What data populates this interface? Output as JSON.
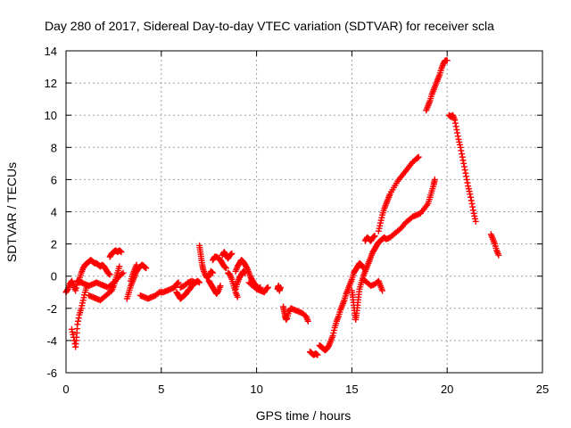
{
  "chart_data": {
    "type": "scatter",
    "title": "Day 280 of 2017, Sidereal Day-to-day VTEC variation (SDTVAR) for receiver scla",
    "xlabel": "GPS time / hours",
    "ylabel": "SDTVAR / TECUs",
    "xlim": [
      0,
      25
    ],
    "ylim": [
      -6,
      14
    ],
    "xticks": [
      0,
      5,
      10,
      15,
      20,
      25
    ],
    "yticks": [
      -6,
      -4,
      -2,
      0,
      2,
      4,
      6,
      8,
      10,
      12,
      14
    ],
    "grid": true,
    "marker": "plus",
    "color": "#ff0000",
    "segments": [
      [
        [
          0.0,
          -1.0
        ],
        [
          0.1,
          -0.8
        ],
        [
          0.2,
          -0.5
        ],
        [
          0.3,
          -0.3
        ],
        [
          0.4,
          -0.6
        ],
        [
          0.5,
          -0.9
        ],
        [
          0.6,
          -0.4
        ],
        [
          0.7,
          -0.2
        ],
        [
          0.8,
          0.2
        ],
        [
          0.9,
          0.5
        ],
        [
          1.0,
          0.7
        ],
        [
          1.1,
          0.8
        ],
        [
          1.2,
          0.9
        ],
        [
          1.3,
          1.0
        ],
        [
          1.4,
          0.9
        ],
        [
          1.5,
          0.8
        ],
        [
          1.6,
          0.8
        ],
        [
          1.7,
          0.7
        ],
        [
          1.8,
          0.6
        ],
        [
          1.9,
          0.7
        ],
        [
          2.0,
          0.6
        ],
        [
          2.1,
          0.4
        ],
        [
          2.2,
          0.2
        ],
        [
          2.3,
          0.1
        ]
      ],
      [
        [
          0.3,
          -3.3
        ],
        [
          0.4,
          -3.8
        ],
        [
          0.5,
          -4.4
        ],
        [
          0.55,
          -3.8
        ],
        [
          0.6,
          -3.0
        ],
        [
          0.7,
          -2.4
        ],
        [
          0.8,
          -2.0
        ],
        [
          0.9,
          -1.5
        ],
        [
          1.0,
          -1.0
        ],
        [
          1.1,
          -0.6
        ]
      ],
      [
        [
          0.6,
          -0.3
        ],
        [
          0.8,
          -0.4
        ],
        [
          1.0,
          -0.5
        ],
        [
          1.2,
          -0.6
        ],
        [
          1.4,
          -0.5
        ],
        [
          1.6,
          -0.4
        ],
        [
          1.8,
          -0.5
        ],
        [
          2.0,
          -0.6
        ],
        [
          2.2,
          -0.7
        ],
        [
          2.4,
          -0.5
        ],
        [
          2.6,
          -0.3
        ],
        [
          2.8,
          0.0
        ],
        [
          3.0,
          0.2
        ]
      ],
      [
        [
          1.2,
          -1.2
        ],
        [
          1.4,
          -1.3
        ],
        [
          1.6,
          -1.4
        ],
        [
          1.8,
          -1.5
        ],
        [
          2.0,
          -1.3
        ],
        [
          2.2,
          -1.1
        ],
        [
          2.4,
          -0.9
        ],
        [
          2.5,
          -0.6
        ],
        [
          2.6,
          -0.2
        ],
        [
          2.7,
          0.2
        ],
        [
          2.8,
          0.6
        ]
      ],
      [
        [
          2.3,
          1.2
        ],
        [
          2.4,
          1.4
        ],
        [
          2.5,
          1.5
        ],
        [
          2.6,
          1.6
        ],
        [
          2.7,
          1.5
        ],
        [
          2.8,
          1.6
        ],
        [
          2.9,
          1.5
        ]
      ],
      [
        [
          3.2,
          -1.4
        ],
        [
          3.3,
          -1.0
        ],
        [
          3.4,
          -0.6
        ],
        [
          3.5,
          -0.3
        ],
        [
          3.6,
          0.0
        ],
        [
          3.7,
          0.3
        ],
        [
          3.8,
          0.5
        ],
        [
          3.9,
          0.6
        ],
        [
          4.0,
          0.7
        ],
        [
          4.1,
          0.6
        ],
        [
          4.2,
          0.5
        ]
      ],
      [
        [
          3.4,
          -0.3
        ],
        [
          3.5,
          0.1
        ],
        [
          3.6,
          0.4
        ],
        [
          3.7,
          0.7
        ]
      ],
      [
        [
          3.9,
          -1.2
        ],
        [
          4.1,
          -1.3
        ],
        [
          4.3,
          -1.4
        ],
        [
          4.5,
          -1.3
        ],
        [
          4.7,
          -1.2
        ],
        [
          4.9,
          -1.0
        ],
        [
          5.1,
          -1.0
        ],
        [
          5.3,
          -0.9
        ],
        [
          5.5,
          -0.8
        ],
        [
          5.7,
          -0.7
        ],
        [
          5.8,
          -0.5
        ],
        [
          5.9,
          -0.4
        ]
      ],
      [
        [
          5.8,
          -1.0
        ],
        [
          5.9,
          -1.2
        ],
        [
          6.0,
          -1.4
        ],
        [
          6.1,
          -1.3
        ],
        [
          6.2,
          -1.2
        ],
        [
          6.3,
          -1.1
        ],
        [
          6.4,
          -0.9
        ],
        [
          6.5,
          -0.8
        ],
        [
          6.6,
          -0.6
        ],
        [
          6.7,
          -0.5
        ],
        [
          6.8,
          -0.4
        ],
        [
          6.9,
          -0.3
        ],
        [
          7.0,
          -0.4
        ]
      ],
      [
        [
          6.0,
          -0.7
        ],
        [
          6.2,
          -0.6
        ],
        [
          6.4,
          -0.4
        ],
        [
          6.6,
          -0.3
        ],
        [
          6.8,
          -0.4
        ]
      ],
      [
        [
          7.0,
          1.9
        ],
        [
          7.05,
          1.5
        ],
        [
          7.1,
          1.1
        ],
        [
          7.15,
          0.7
        ],
        [
          7.2,
          0.4
        ],
        [
          7.3,
          0.1
        ],
        [
          7.4,
          -0.1
        ],
        [
          7.5,
          0.0
        ],
        [
          7.6,
          0.3
        ],
        [
          7.7,
          0.2
        ]
      ],
      [
        [
          7.5,
          -0.3
        ],
        [
          7.6,
          -0.5
        ],
        [
          7.7,
          -0.7
        ],
        [
          7.8,
          -0.9
        ],
        [
          7.9,
          -1.1
        ],
        [
          8.0,
          -0.9
        ],
        [
          8.1,
          -0.6
        ]
      ],
      [
        [
          7.7,
          1.0
        ],
        [
          7.8,
          1.2
        ],
        [
          7.9,
          1.2
        ],
        [
          8.0,
          1.1
        ],
        [
          8.1,
          1.0
        ],
        [
          8.2,
          0.8
        ],
        [
          8.3,
          0.6
        ],
        [
          8.4,
          0.5
        ]
      ],
      [
        [
          8.2,
          1.3
        ],
        [
          8.3,
          1.5
        ],
        [
          8.4,
          1.3
        ],
        [
          8.5,
          1.1
        ],
        [
          8.6,
          1.3
        ],
        [
          8.7,
          1.4
        ]
      ],
      [
        [
          8.5,
          0.2
        ],
        [
          8.6,
          0.1
        ],
        [
          8.7,
          -0.2
        ],
        [
          8.8,
          -0.6
        ],
        [
          8.9,
          -1.0
        ],
        [
          9.0,
          -1.3
        ]
      ],
      [
        [
          8.9,
          0.3
        ],
        [
          9.0,
          0.6
        ],
        [
          9.1,
          0.8
        ],
        [
          9.2,
          1.0
        ],
        [
          9.3,
          0.9
        ],
        [
          9.4,
          0.7
        ],
        [
          9.5,
          0.5
        ],
        [
          9.6,
          0.2
        ],
        [
          9.7,
          -0.1
        ],
        [
          9.8,
          -0.3
        ],
        [
          9.9,
          -0.5
        ],
        [
          10.0,
          -0.6
        ],
        [
          10.1,
          -0.8
        ],
        [
          10.2,
          -0.7
        ]
      ],
      [
        [
          8.9,
          -0.8
        ],
        [
          9.0,
          -0.4
        ],
        [
          9.1,
          -0.1
        ],
        [
          9.2,
          0.1
        ],
        [
          9.3,
          0.3
        ],
        [
          9.4,
          0.2
        ]
      ],
      [
        [
          9.6,
          -0.4
        ],
        [
          9.8,
          -0.6
        ],
        [
          10.0,
          -0.8
        ],
        [
          10.2,
          -0.9
        ],
        [
          10.4,
          -1.0
        ],
        [
          10.5,
          -0.8
        ],
        [
          10.6,
          -0.7
        ]
      ],
      [
        [
          11.1,
          -0.8
        ],
        [
          11.15,
          -0.6
        ],
        [
          11.2,
          -0.9
        ],
        [
          11.25,
          -0.7
        ]
      ],
      [
        [
          11.4,
          -1.9
        ],
        [
          11.45,
          -2.2
        ],
        [
          11.5,
          -2.5
        ],
        [
          11.55,
          -2.7
        ],
        [
          11.6,
          -2.6
        ],
        [
          11.7,
          -2.2
        ],
        [
          11.8,
          -2.0
        ],
        [
          12.0,
          -2.1
        ],
        [
          12.2,
          -2.2
        ],
        [
          12.4,
          -2.3
        ],
        [
          12.6,
          -2.5
        ],
        [
          12.7,
          -2.8
        ]
      ],
      [
        [
          12.8,
          -4.7
        ],
        [
          12.9,
          -4.8
        ],
        [
          13.0,
          -4.9
        ],
        [
          13.1,
          -4.8
        ],
        [
          13.2,
          -4.9
        ]
      ],
      [
        [
          13.3,
          -4.3
        ],
        [
          13.4,
          -4.4
        ],
        [
          13.5,
          -4.5
        ],
        [
          13.6,
          -4.6
        ],
        [
          13.7,
          -4.5
        ],
        [
          13.8,
          -4.3
        ],
        [
          13.9,
          -4.0
        ],
        [
          14.0,
          -3.7
        ],
        [
          14.1,
          -3.2
        ],
        [
          14.2,
          -2.8
        ],
        [
          14.3,
          -2.5
        ],
        [
          14.4,
          -2.1
        ],
        [
          14.5,
          -1.8
        ],
        [
          14.6,
          -1.5
        ],
        [
          14.7,
          -1.1
        ],
        [
          14.8,
          -0.8
        ],
        [
          14.9,
          -0.5
        ],
        [
          15.0,
          -0.2
        ],
        [
          15.1,
          0.2
        ],
        [
          15.2,
          0.4
        ],
        [
          15.3,
          0.6
        ],
        [
          15.4,
          0.8
        ],
        [
          15.5,
          0.7
        ],
        [
          15.6,
          0.5
        ]
      ],
      [
        [
          15.0,
          -0.9
        ],
        [
          15.05,
          -1.3
        ],
        [
          15.1,
          -1.8
        ],
        [
          15.15,
          -2.3
        ],
        [
          15.2,
          -2.7
        ],
        [
          15.25,
          -2.3
        ],
        [
          15.3,
          -1.8
        ],
        [
          15.35,
          -1.3
        ],
        [
          15.4,
          -0.8
        ],
        [
          15.5,
          -0.4
        ],
        [
          15.6,
          0.0
        ],
        [
          15.7,
          0.3
        ],
        [
          15.8,
          0.6
        ],
        [
          15.9,
          0.9
        ],
        [
          16.0,
          1.2
        ],
        [
          16.1,
          1.5
        ],
        [
          16.2,
          1.7
        ],
        [
          16.3,
          1.9
        ],
        [
          16.4,
          2.1
        ],
        [
          16.5,
          2.2
        ],
        [
          16.6,
          2.3
        ],
        [
          16.7,
          2.4
        ],
        [
          16.8,
          2.3
        ],
        [
          17.0,
          2.4
        ],
        [
          17.2,
          2.6
        ],
        [
          17.4,
          2.8
        ],
        [
          17.6,
          3.0
        ],
        [
          17.8,
          3.3
        ],
        [
          18.0,
          3.5
        ],
        [
          18.2,
          3.7
        ],
        [
          18.4,
          3.8
        ],
        [
          18.6,
          3.9
        ],
        [
          18.8,
          4.2
        ],
        [
          19.0,
          4.5
        ],
        [
          19.1,
          4.9
        ],
        [
          19.2,
          5.3
        ],
        [
          19.3,
          5.7
        ],
        [
          19.35,
          6.0
        ]
      ],
      [
        [
          15.6,
          -0.2
        ],
        [
          15.8,
          -0.4
        ],
        [
          16.0,
          -0.6
        ],
        [
          16.2,
          -0.5
        ],
        [
          16.4,
          -0.3
        ],
        [
          16.5,
          -0.6
        ],
        [
          16.6,
          -0.9
        ]
      ],
      [
        [
          15.7,
          2.2
        ],
        [
          15.8,
          2.4
        ],
        [
          15.9,
          2.3
        ],
        [
          16.0,
          2.2
        ],
        [
          16.1,
          2.4
        ],
        [
          16.2,
          2.5
        ]
      ],
      [
        [
          16.4,
          2.8
        ],
        [
          16.5,
          3.3
        ],
        [
          16.6,
          3.8
        ],
        [
          16.7,
          4.2
        ],
        [
          16.8,
          4.5
        ],
        [
          16.9,
          4.8
        ],
        [
          17.0,
          5.1
        ],
        [
          17.2,
          5.5
        ],
        [
          17.4,
          5.9
        ],
        [
          17.6,
          6.2
        ],
        [
          17.8,
          6.5
        ],
        [
          18.0,
          6.8
        ],
        [
          18.2,
          7.1
        ],
        [
          18.4,
          7.3
        ],
        [
          18.5,
          7.4
        ]
      ],
      [
        [
          18.9,
          10.3
        ],
        [
          19.0,
          10.6
        ],
        [
          19.1,
          10.9
        ],
        [
          19.2,
          11.3
        ],
        [
          19.3,
          11.6
        ],
        [
          19.4,
          11.9
        ],
        [
          19.5,
          12.2
        ],
        [
          19.6,
          12.5
        ],
        [
          19.7,
          12.9
        ],
        [
          19.8,
          13.2
        ],
        [
          19.9,
          13.4
        ],
        [
          20.0,
          13.4
        ]
      ],
      [
        [
          20.1,
          10.0
        ],
        [
          20.2,
          9.9
        ],
        [
          20.3,
          10.0
        ],
        [
          20.4,
          9.7
        ],
        [
          20.5,
          9.1
        ],
        [
          20.6,
          8.5
        ],
        [
          20.7,
          8.0
        ],
        [
          20.8,
          7.4
        ],
        [
          20.9,
          6.8
        ],
        [
          21.0,
          6.2
        ],
        [
          21.1,
          5.6
        ],
        [
          21.2,
          5.1
        ],
        [
          21.3,
          4.5
        ],
        [
          21.4,
          3.9
        ],
        [
          21.5,
          3.4
        ]
      ],
      [
        [
          22.3,
          2.6
        ],
        [
          22.4,
          2.3
        ],
        [
          22.5,
          2.0
        ],
        [
          22.6,
          1.6
        ],
        [
          22.7,
          1.3
        ]
      ]
    ]
  }
}
